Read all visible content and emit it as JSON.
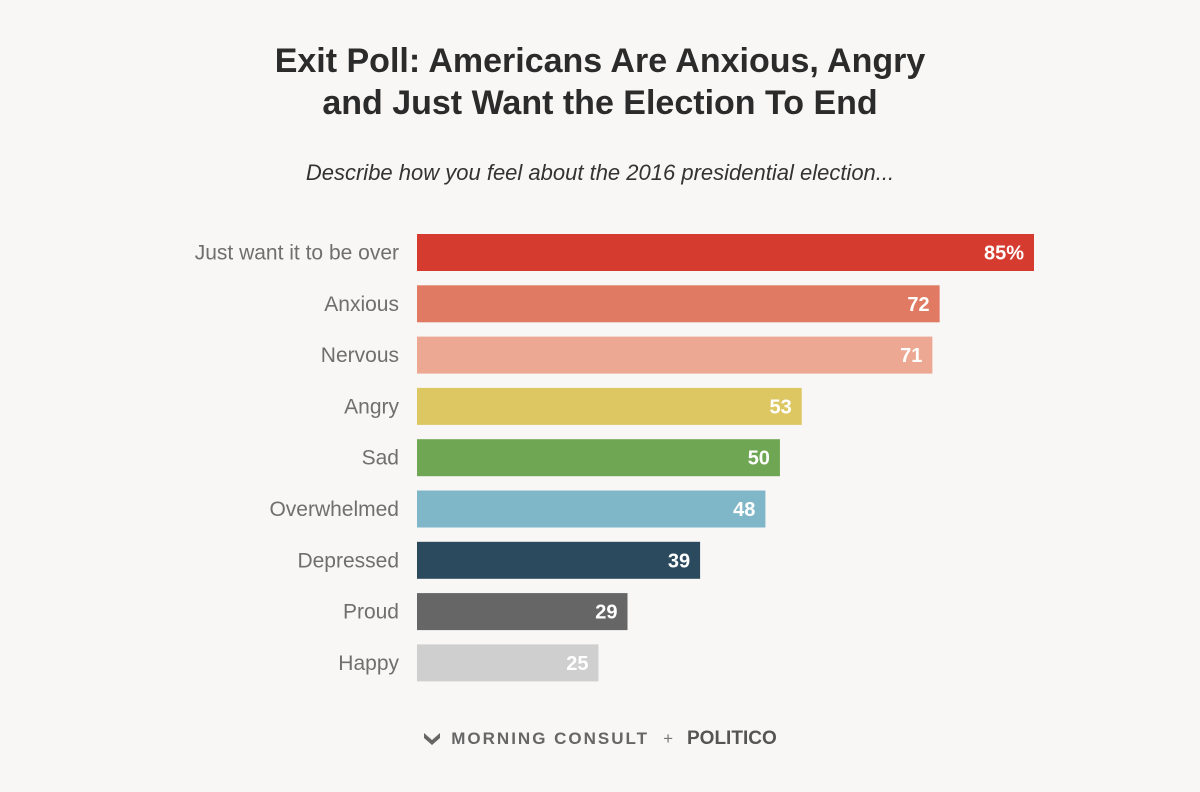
{
  "title_lines": [
    "Exit Poll: Americans Are Anxious, Angry",
    "and Just Want the Election To End"
  ],
  "subtitle": "Describe how you feel about the 2016 presidential election...",
  "chart_data": {
    "type": "bar",
    "orientation": "horizontal",
    "title": "Exit Poll: Americans Are Anxious, Angry and Just Want the Election To End",
    "subtitle": "Describe how you feel about the 2016 presidential election...",
    "categories": [
      "Just want it to be over",
      "Anxious",
      "Nervous",
      "Angry",
      "Sad",
      "Overwhelmed",
      "Depressed",
      "Proud",
      "Happy"
    ],
    "values": [
      85,
      72,
      71,
      53,
      50,
      48,
      39,
      29,
      25
    ],
    "value_labels": [
      "85%",
      "72",
      "71",
      "53",
      "50",
      "48",
      "39",
      "29",
      "25"
    ],
    "colors": [
      "#d63b30",
      "#e07a62",
      "#eda894",
      "#ddc763",
      "#6fa653",
      "#7fb7c9",
      "#2b4a5e",
      "#666666",
      "#cfcfcf"
    ],
    "unit": "%",
    "xlim": [
      0,
      85
    ],
    "grid": false,
    "xlabel": "",
    "ylabel": ""
  },
  "footer": {
    "brand": "MORNING CONSULT",
    "separator": "+",
    "partner": "POLITICO",
    "logo_icon": "morning-consult-logo-icon"
  }
}
